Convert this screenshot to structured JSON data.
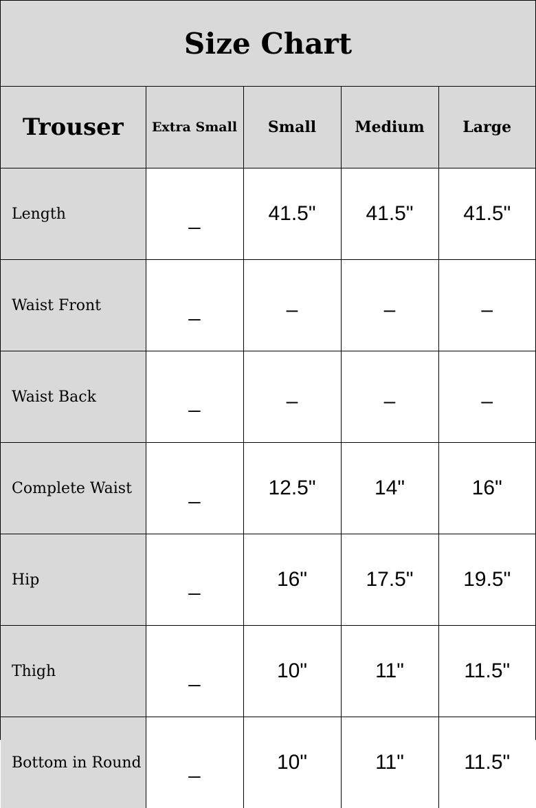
{
  "title": "Size Chart",
  "header": {
    "lead": "Trouser",
    "sizes": [
      "Extra Small",
      "Small",
      "Medium",
      "Large"
    ]
  },
  "rows": [
    {
      "label": "Length",
      "values": [
        "_",
        "41.5\"",
        "41.5\"",
        "41.5\""
      ]
    },
    {
      "label": "Waist Front",
      "values": [
        "_",
        "–",
        "–",
        "–"
      ]
    },
    {
      "label": "Waist Back",
      "values": [
        "_",
        "–",
        "–",
        "–"
      ]
    },
    {
      "label": "Complete Waist",
      "values": [
        "_",
        "12.5\"",
        "14\"",
        "16\""
      ]
    },
    {
      "label": "Hip",
      "values": [
        "_",
        "16\"",
        "17.5\"",
        "19.5\""
      ]
    },
    {
      "label": "Thigh",
      "values": [
        "_",
        "10\"",
        "11\"",
        "11.5\""
      ]
    },
    {
      "label": "Bottom in Round",
      "values": [
        "_",
        "10\"",
        "11\"",
        "11.5\""
      ]
    }
  ]
}
